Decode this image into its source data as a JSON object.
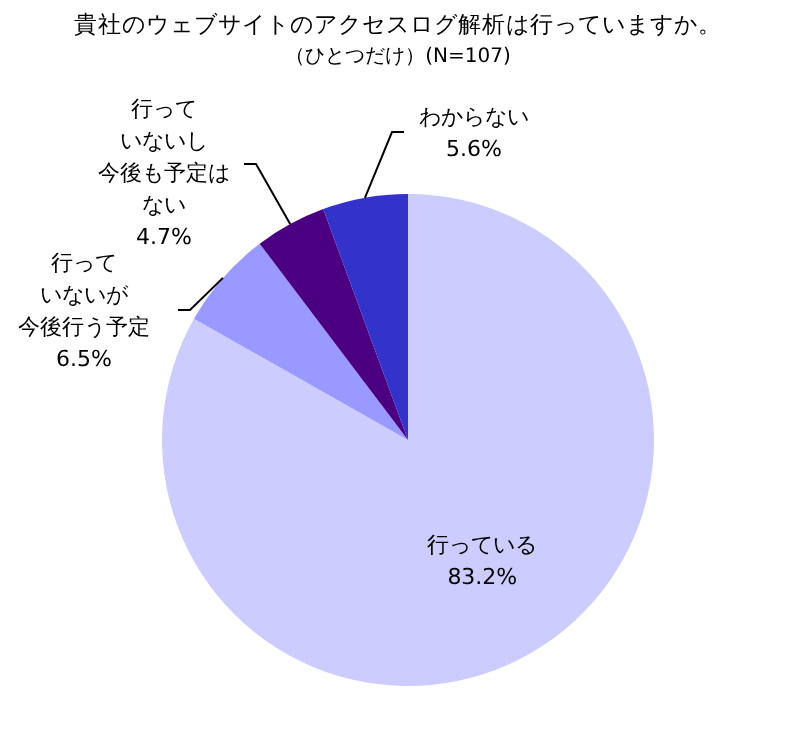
{
  "chart_data": {
    "type": "pie",
    "title": "貴社のウェブサイトのアクセスログ解析は行っていますか。",
    "subtitle": "（ひとつだけ）(N=107)",
    "categories": [
      "行っている",
      "行っていないが今後行う予定",
      "行っていないし今後も予定はない",
      "わからない"
    ],
    "values": [
      83.2,
      6.5,
      4.7,
      5.6
    ],
    "colors": [
      "#ccccff",
      "#9999ff",
      "#4b0082",
      "#3333cc"
    ],
    "value_labels": [
      "83.2%",
      "6.5%",
      "4.7%",
      "5.6%"
    ]
  }
}
